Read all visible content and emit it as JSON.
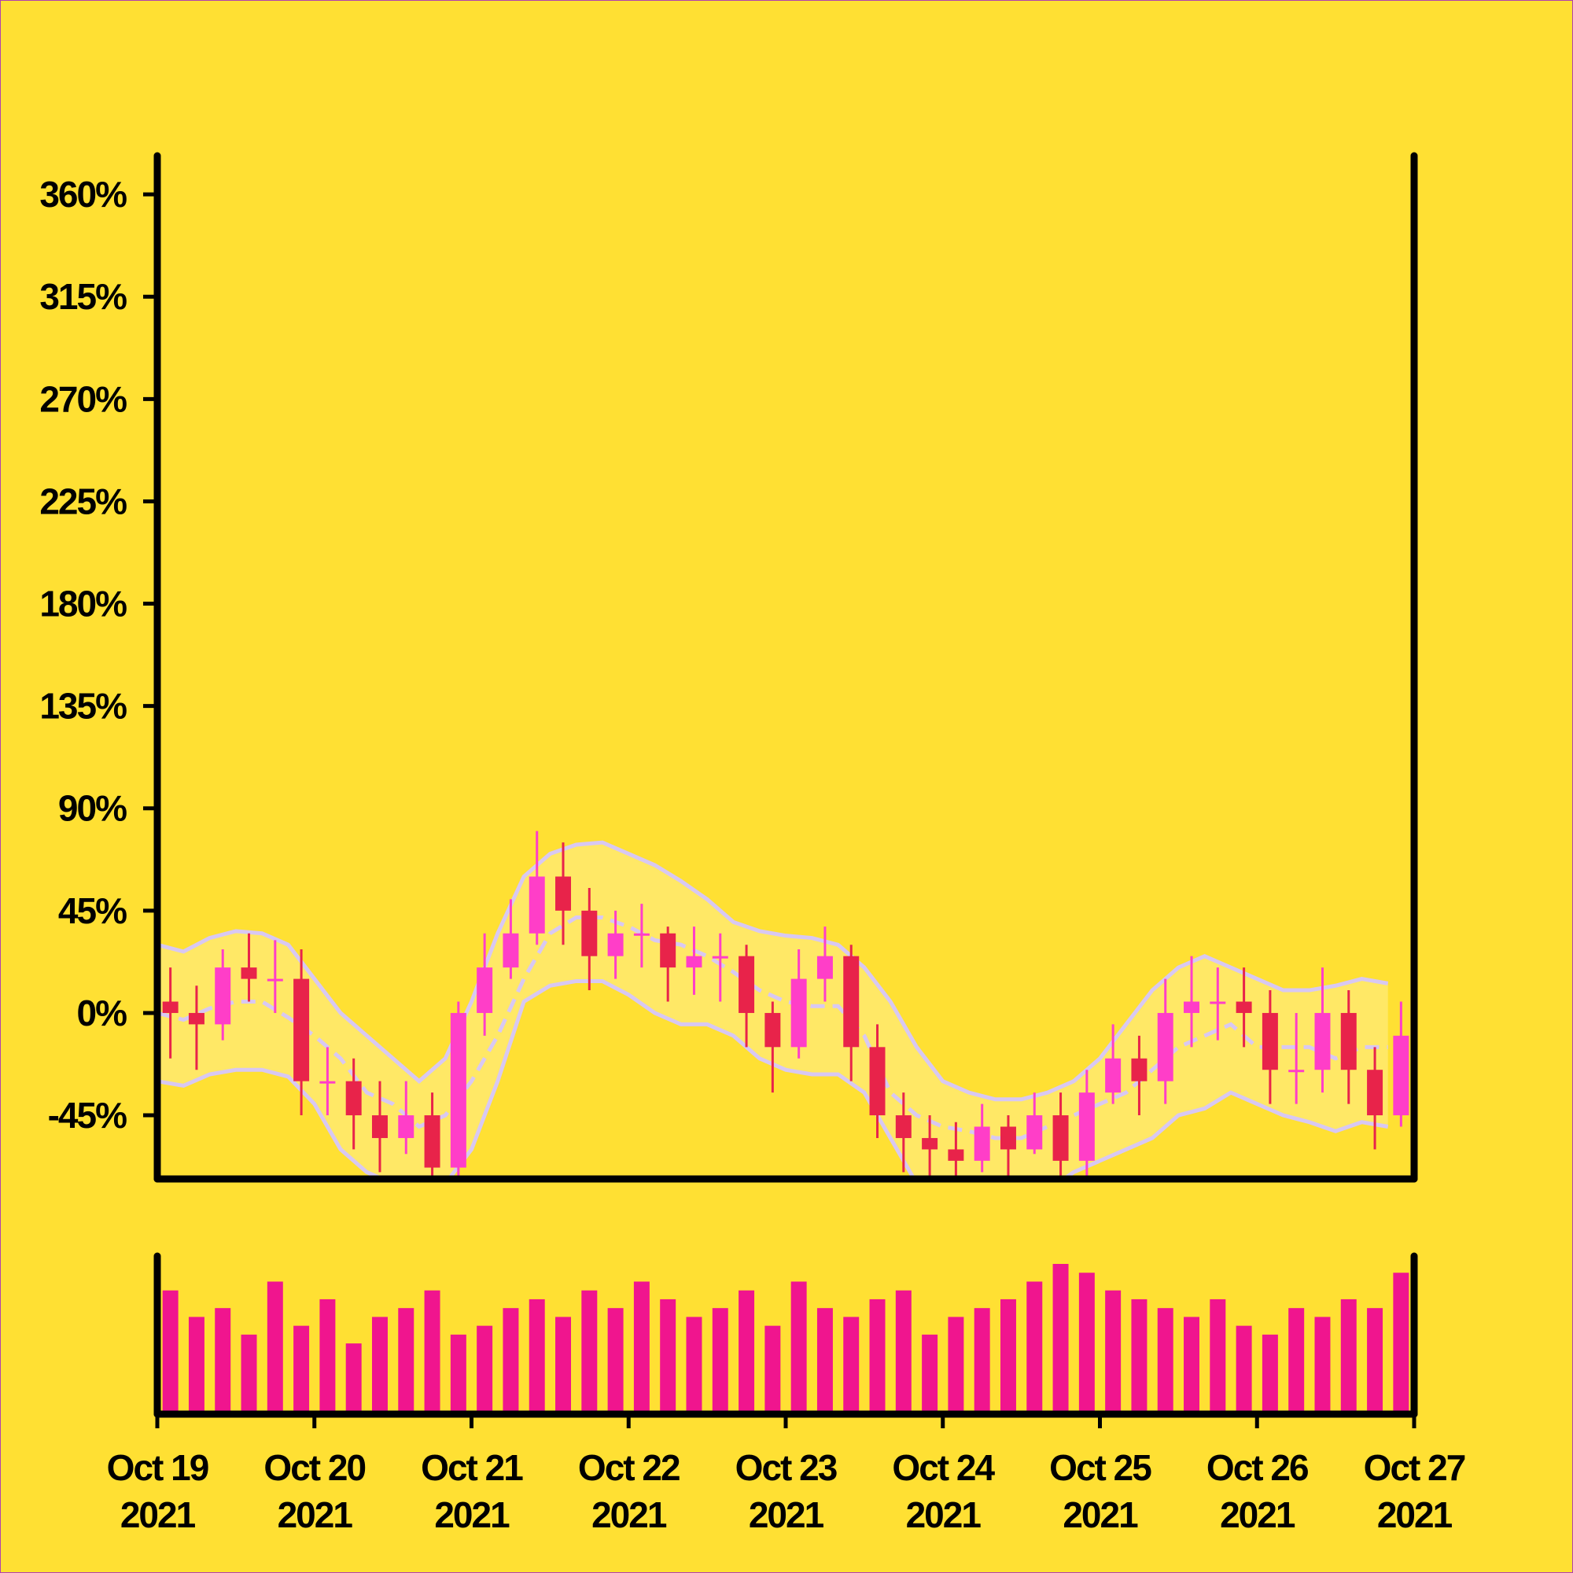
{
  "chart_data": {
    "type": "candlestick",
    "x": [
      "2021-10-19 00:00",
      "2021-10-19 04:00",
      "2021-10-19 08:00",
      "2021-10-19 12:00",
      "2021-10-19 16:00",
      "2021-10-19 20:00",
      "2021-10-20 00:00",
      "2021-10-20 04:00",
      "2021-10-20 08:00",
      "2021-10-20 12:00",
      "2021-10-20 16:00",
      "2021-10-20 20:00",
      "2021-10-21 00:00",
      "2021-10-21 04:00",
      "2021-10-21 08:00",
      "2021-10-21 12:00",
      "2021-10-21 16:00",
      "2021-10-21 20:00",
      "2021-10-22 00:00",
      "2021-10-22 04:00",
      "2021-10-22 08:00",
      "2021-10-22 12:00",
      "2021-10-22 16:00",
      "2021-10-22 20:00",
      "2021-10-23 00:00",
      "2021-10-23 04:00",
      "2021-10-23 08:00",
      "2021-10-23 12:00",
      "2021-10-23 16:00",
      "2021-10-23 20:00",
      "2021-10-24 00:00",
      "2021-10-24 04:00",
      "2021-10-24 08:00",
      "2021-10-24 12:00",
      "2021-10-24 16:00",
      "2021-10-24 20:00",
      "2021-10-25 00:00",
      "2021-10-25 04:00",
      "2021-10-25 08:00",
      "2021-10-25 12:00",
      "2021-10-25 16:00",
      "2021-10-25 20:00",
      "2021-10-26 00:00",
      "2021-10-26 04:00",
      "2021-10-26 08:00",
      "2021-10-26 12:00",
      "2021-10-26 16:00",
      "2021-10-26 20:00"
    ],
    "open": [
      5,
      0,
      -5,
      20,
      15,
      15,
      -30,
      -30,
      -45,
      -55,
      -45,
      -68,
      0,
      20,
      35,
      60,
      45,
      25,
      35,
      35,
      20,
      25,
      25,
      0,
      -15,
      15,
      25,
      -15,
      -45,
      -55,
      -60,
      -65,
      -50,
      -60,
      -45,
      -65,
      -35,
      -20,
      -30,
      0,
      5,
      5,
      0,
      -25,
      -25,
      0,
      -25,
      -45
    ],
    "high": [
      20,
      12,
      28,
      35,
      32,
      28,
      -15,
      -20,
      -30,
      -30,
      -35,
      5,
      35,
      50,
      80,
      75,
      55,
      45,
      48,
      38,
      38,
      35,
      30,
      5,
      28,
      38,
      30,
      -5,
      -35,
      -45,
      -48,
      -40,
      -45,
      -35,
      -35,
      -25,
      -5,
      -10,
      15,
      25,
      20,
      20,
      10,
      0,
      20,
      10,
      -15,
      5
    ],
    "low": [
      -20,
      -25,
      -12,
      5,
      0,
      -45,
      -45,
      -60,
      -70,
      -62,
      -80,
      -72,
      -10,
      15,
      30,
      30,
      10,
      15,
      20,
      5,
      8,
      5,
      -15,
      -35,
      -20,
      5,
      -30,
      -55,
      -70,
      -75,
      -80,
      -70,
      -72,
      -62,
      -80,
      -72,
      -40,
      -45,
      -40,
      -15,
      -12,
      -15,
      -40,
      -40,
      -35,
      -40,
      -60,
      -50
    ],
    "close": [
      0,
      -5,
      20,
      15,
      15,
      -30,
      -30,
      -45,
      -55,
      -45,
      -68,
      0,
      20,
      35,
      60,
      45,
      25,
      35,
      35,
      20,
      25,
      25,
      0,
      -15,
      15,
      25,
      -15,
      -45,
      -55,
      -60,
      -65,
      -50,
      -60,
      -45,
      -65,
      -35,
      -20,
      -30,
      0,
      5,
      5,
      0,
      -25,
      -25,
      0,
      -25,
      -45,
      -10
    ],
    "volume": [
      70,
      55,
      60,
      45,
      75,
      50,
      65,
      40,
      55,
      60,
      70,
      45,
      50,
      60,
      65,
      55,
      70,
      60,
      75,
      65,
      55,
      60,
      70,
      50,
      75,
      60,
      55,
      65,
      70,
      45,
      55,
      60,
      65,
      75,
      85,
      80,
      70,
      65,
      60,
      55,
      65,
      50,
      45,
      60,
      55,
      65,
      60,
      80
    ],
    "bands": {
      "upper": [
        30,
        27,
        33,
        36,
        35,
        30,
        15,
        0,
        -10,
        -20,
        -30,
        -20,
        5,
        35,
        60,
        70,
        74,
        75,
        70,
        65,
        58,
        50,
        40,
        36,
        34,
        33,
        30,
        20,
        5,
        -15,
        -30,
        -35,
        -38,
        -38,
        -35,
        -30,
        -20,
        -5,
        10,
        20,
        25,
        20,
        15,
        10,
        10,
        12,
        15,
        13
      ],
      "middle": [
        0,
        -3,
        2,
        5,
        5,
        -2,
        -10,
        -20,
        -35,
        -40,
        -50,
        -45,
        -30,
        -10,
        15,
        35,
        42,
        42,
        38,
        32,
        30,
        25,
        18,
        10,
        5,
        3,
        3,
        -10,
        -35,
        -45,
        -50,
        -52,
        -55,
        -55,
        -50,
        -45,
        -40,
        -35,
        -25,
        -15,
        -10,
        -5,
        -15,
        -15,
        -15,
        -20,
        -15,
        -15
      ],
      "lower": [
        -30,
        -32,
        -27,
        -25,
        -25,
        -28,
        -40,
        -60,
        -70,
        -75,
        -80,
        -75,
        -60,
        -30,
        5,
        12,
        14,
        14,
        8,
        0,
        -5,
        -5,
        -10,
        -20,
        -25,
        -27,
        -27,
        -35,
        -55,
        -75,
        -80,
        -80,
        -80,
        -80,
        -78,
        -70,
        -65,
        -60,
        -55,
        -45,
        -42,
        -35,
        -40,
        -45,
        -48,
        -52,
        -48,
        -50
      ]
    },
    "colors": {
      "up": "#ff3ec8",
      "down": "#e8234a",
      "volume": "#f0158e",
      "band": "#d8c8f2",
      "band_fill": "#ffe866",
      "background": "#ffe033"
    },
    "xlim": [
      "2021-10-19 00:00",
      "2021-10-27 00:00"
    ],
    "xticks": [
      {
        "value": "2021-10-19 00:00",
        "label": [
          "Oct 19",
          "2021"
        ]
      },
      {
        "value": "2021-10-20 00:00",
        "label": [
          "Oct 20",
          "2021"
        ]
      },
      {
        "value": "2021-10-21 00:00",
        "label": [
          "Oct 21",
          "2021"
        ]
      },
      {
        "value": "2021-10-22 00:00",
        "label": [
          "Oct 22",
          "2021"
        ]
      },
      {
        "value": "2021-10-23 00:00",
        "label": [
          "Oct 23",
          "2021"
        ]
      },
      {
        "value": "2021-10-24 00:00",
        "label": [
          "Oct 24",
          "2021"
        ]
      },
      {
        "value": "2021-10-25 00:00",
        "label": [
          "Oct 25",
          "2021"
        ]
      },
      {
        "value": "2021-10-26 00:00",
        "label": [
          "Oct 26",
          "2021"
        ]
      },
      {
        "value": "2021-10-27 00:00",
        "label": [
          "Oct 27",
          "2021"
        ]
      }
    ],
    "ylim": [
      -73,
      377
    ],
    "yticks": [
      {
        "value": -45,
        "label": "-45%"
      },
      {
        "value": 0,
        "label": "0%"
      },
      {
        "value": 45,
        "label": "45%"
      },
      {
        "value": 90,
        "label": "90%"
      },
      {
        "value": 135,
        "label": "135%"
      },
      {
        "value": 180,
        "label": "180%"
      },
      {
        "value": 225,
        "label": "225%"
      },
      {
        "value": 270,
        "label": "270%"
      },
      {
        "value": 315,
        "label": "315%"
      },
      {
        "value": 360,
        "label": "360%"
      }
    ]
  }
}
